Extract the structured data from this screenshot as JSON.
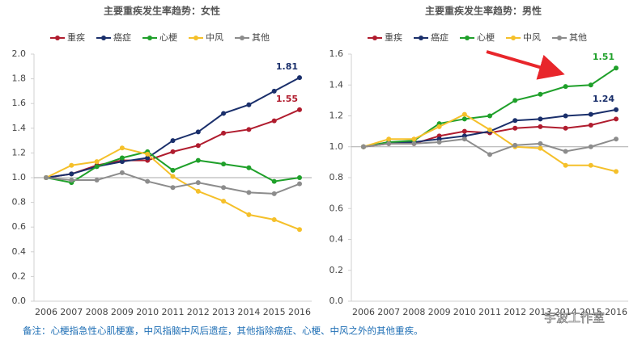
{
  "chart_data": [
    {
      "type": "line",
      "title": "主要重疾发生率趋势：女性",
      "categories": [
        "2006",
        "2007",
        "2008",
        "2009",
        "2010",
        "2011",
        "2012",
        "2013",
        "2014",
        "2015",
        "2016"
      ],
      "ylim": [
        0,
        2
      ],
      "yticks": [
        {
          "value": 0,
          "label": "0.0"
        },
        0.2,
        0.4,
        0.6,
        0.8,
        {
          "value": 1,
          "label": "1.0"
        },
        1.2,
        1.4,
        1.6,
        1.8,
        {
          "value": 2,
          "label": "2.0"
        }
      ],
      "reference_line": 1,
      "series": [
        {
          "name": "重疾",
          "color": "#b01c2e",
          "show_last_label": true,
          "values": [
            1.0,
            1.03,
            1.1,
            1.14,
            1.14,
            1.21,
            1.26,
            1.36,
            1.39,
            1.46,
            1.55
          ]
        },
        {
          "name": "癌症",
          "color": "#1a2f6b",
          "show_last_label": true,
          "values": [
            1.0,
            1.03,
            1.09,
            1.13,
            1.16,
            1.3,
            1.37,
            1.52,
            1.59,
            1.7,
            1.81
          ]
        },
        {
          "name": "心梗",
          "color": "#1fa02a",
          "values": [
            1.0,
            0.96,
            1.09,
            1.16,
            1.21,
            1.06,
            1.14,
            1.11,
            1.08,
            0.97,
            1.0
          ]
        },
        {
          "name": "中风",
          "color": "#f5c02a",
          "values": [
            1.0,
            1.1,
            1.13,
            1.24,
            1.19,
            1.01,
            0.89,
            0.81,
            0.7,
            0.66,
            0.58
          ]
        },
        {
          "name": "其他",
          "color": "#8c8c8c",
          "values": [
            1.0,
            0.98,
            0.98,
            1.04,
            0.97,
            0.92,
            0.96,
            0.92,
            0.88,
            0.87,
            0.95
          ]
        }
      ]
    },
    {
      "type": "line",
      "title": "主要重疾发生率趋势：男性",
      "categories": [
        "2006",
        "2007",
        "2008",
        "2009",
        "2010",
        "2011",
        "2012",
        "2013",
        "2014",
        "2015",
        "2016"
      ],
      "ylim": [
        0,
        1.6
      ],
      "yticks": [
        {
          "value": 0,
          "label": "0.0"
        },
        0.2,
        0.4,
        0.6,
        0.8,
        {
          "value": 1,
          "label": "1.0"
        },
        1.2,
        1.4,
        1.6
      ],
      "reference_line": 1,
      "series": [
        {
          "name": "重疾",
          "color": "#b01c2e",
          "values": [
            1.0,
            1.02,
            1.02,
            1.07,
            1.1,
            1.09,
            1.12,
            1.13,
            1.12,
            1.14,
            1.18
          ]
        },
        {
          "name": "癌症",
          "color": "#1a2f6b",
          "show_last_label": true,
          "values": [
            1.0,
            1.03,
            1.03,
            1.05,
            1.07,
            1.1,
            1.17,
            1.18,
            1.2,
            1.21,
            1.24
          ]
        },
        {
          "name": "心梗",
          "color": "#1fa02a",
          "show_last_label": true,
          "values": [
            1.0,
            1.03,
            1.04,
            1.15,
            1.18,
            1.2,
            1.3,
            1.34,
            1.39,
            1.4,
            1.51
          ]
        },
        {
          "name": "中风",
          "color": "#f5c02a",
          "values": [
            1.0,
            1.05,
            1.05,
            1.13,
            1.21,
            1.11,
            1.0,
            0.99,
            0.88,
            0.88,
            0.84
          ]
        },
        {
          "name": "其他",
          "color": "#8c8c8c",
          "values": [
            1.0,
            1.02,
            1.02,
            1.03,
            1.05,
            0.95,
            1.01,
            1.02,
            0.97,
            1.0,
            1.05
          ]
        }
      ]
    }
  ],
  "note": "备注：心梗指急性心肌梗塞，中风指脑中风后遗症，其他指除癌症、心梗、中风之外的其他重疾。",
  "watermark": "宇波工作室"
}
